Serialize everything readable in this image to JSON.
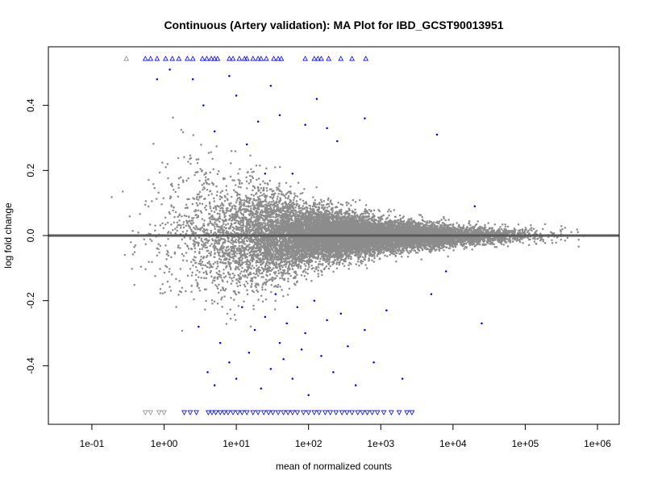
{
  "chart_data": {
    "type": "scatter",
    "title": "Continuous (Artery validation): MA Plot for IBD_GCST90013951",
    "xlabel": "mean of normalized counts",
    "ylabel": "log fold change",
    "x_scale": "log10",
    "xlim": [
      0.025,
      2000000
    ],
    "ylim": [
      -0.58,
      0.58
    ],
    "x_ticks": [
      {
        "value": 0.1,
        "label": "1e-01"
      },
      {
        "value": 1,
        "label": "1e+00"
      },
      {
        "value": 10,
        "label": "1e+01"
      },
      {
        "value": 100,
        "label": "1e+02"
      },
      {
        "value": 1000,
        "label": "1e+03"
      },
      {
        "value": 10000,
        "label": "1e+04"
      },
      {
        "value": 100000,
        "label": "1e+05"
      },
      {
        "value": 1000000,
        "label": "1e+06"
      }
    ],
    "y_ticks": [
      {
        "value": -0.4,
        "label": "-0.4"
      },
      {
        "value": -0.2,
        "label": "-0.2"
      },
      {
        "value": 0.0,
        "label": "0.0"
      },
      {
        "value": 0.2,
        "label": "0.2"
      },
      {
        "value": 0.4,
        "label": "0.4"
      }
    ],
    "reference_line": {
      "y": 0,
      "color": "#5a5a5a"
    },
    "grid": false,
    "colors": {
      "not_significant": "#8c8c8c",
      "significant": "#0000ee",
      "frame": "#000000"
    },
    "series": [
      {
        "kind": "significant",
        "color": "#0000ee",
        "points": [
          [
            0.8,
            0.48
          ],
          [
            1.2,
            0.51
          ],
          [
            2.5,
            0.48
          ],
          [
            3.5,
            0.4
          ],
          [
            5,
            0.32
          ],
          [
            8,
            0.49
          ],
          [
            10,
            0.43
          ],
          [
            14,
            0.28
          ],
          [
            20,
            0.35
          ],
          [
            25,
            0.19
          ],
          [
            30,
            0.46
          ],
          [
            40,
            0.37
          ],
          [
            60,
            0.19
          ],
          [
            90,
            0.34
          ],
          [
            130,
            0.42
          ],
          [
            180,
            0.33
          ],
          [
            250,
            0.29
          ],
          [
            600,
            0.36
          ],
          [
            6000,
            0.31
          ],
          [
            20000,
            0.09
          ],
          [
            3,
            -0.28
          ],
          [
            4,
            -0.42
          ],
          [
            5,
            -0.46
          ],
          [
            6,
            -0.33
          ],
          [
            8,
            -0.39
          ],
          [
            10,
            -0.44
          ],
          [
            12,
            -0.22
          ],
          [
            15,
            -0.36
          ],
          [
            18,
            -0.29
          ],
          [
            22,
            -0.47
          ],
          [
            25,
            -0.25
          ],
          [
            30,
            -0.41
          ],
          [
            35,
            -0.18
          ],
          [
            40,
            -0.33
          ],
          [
            45,
            -0.38
          ],
          [
            50,
            -0.27
          ],
          [
            60,
            -0.44
          ],
          [
            70,
            -0.22
          ],
          [
            80,
            -0.35
          ],
          [
            90,
            -0.3
          ],
          [
            100,
            -0.49
          ],
          [
            120,
            -0.2
          ],
          [
            150,
            -0.37
          ],
          [
            180,
            -0.26
          ],
          [
            220,
            -0.42
          ],
          [
            280,
            -0.24
          ],
          [
            350,
            -0.34
          ],
          [
            450,
            -0.46
          ],
          [
            600,
            -0.29
          ],
          [
            800,
            -0.39
          ],
          [
            1200,
            -0.23
          ],
          [
            2000,
            -0.44
          ],
          [
            5000,
            -0.18
          ],
          [
            8000,
            -0.11
          ],
          [
            25000,
            -0.27
          ]
        ]
      },
      {
        "kind": "significant-clipped-high",
        "color": "#0000ee",
        "y_display": 0.543,
        "x": [
          0.55,
          0.65,
          0.8,
          1.05,
          1.3,
          1.6,
          2.1,
          2.5,
          3.4,
          3.9,
          4.5,
          5.0,
          5.5,
          8,
          9,
          11,
          13,
          14,
          17,
          20,
          22,
          26,
          33,
          38,
          42,
          90,
          120,
          135,
          150,
          190,
          280,
          400,
          620
        ]
      },
      {
        "kind": "not-significant-clipped-high",
        "color": "#8c8c8c",
        "y_display": 0.543,
        "x": [
          0.3
        ]
      },
      {
        "kind": "significant-clipped-low",
        "color": "#0000ee",
        "y_display": -0.543,
        "x": [
          1.9,
          2.3,
          2.8,
          4.1,
          4.6,
          5.2,
          6.0,
          6.8,
          7.7,
          9.0,
          10.5,
          12,
          14,
          17,
          20,
          24,
          28,
          32,
          38,
          45,
          52,
          60,
          70,
          85,
          100,
          120,
          140,
          170,
          200,
          240,
          290,
          340,
          400,
          480,
          560,
          650,
          760,
          900,
          1100,
          1400,
          1800,
          2300,
          2700
        ]
      },
      {
        "kind": "not-significant-clipped-low",
        "color": "#8c8c8c",
        "y_display": -0.543,
        "x": [
          0.55,
          0.65,
          0.85,
          1.0
        ]
      },
      {
        "kind": "not-significant",
        "color": "#8c8c8c",
        "generated": true,
        "n_points": 14000,
        "approx_y_spread": [
          {
            "x": 0.1,
            "sd": 0.1
          },
          {
            "x": 1,
            "sd": 0.13
          },
          {
            "x": 10,
            "sd": 0.09
          },
          {
            "x": 100,
            "sd": 0.045
          },
          {
            "x": 1000,
            "sd": 0.025
          },
          {
            "x": 10000,
            "sd": 0.015
          },
          {
            "x": 100000,
            "sd": 0.012
          }
        ]
      }
    ]
  }
}
